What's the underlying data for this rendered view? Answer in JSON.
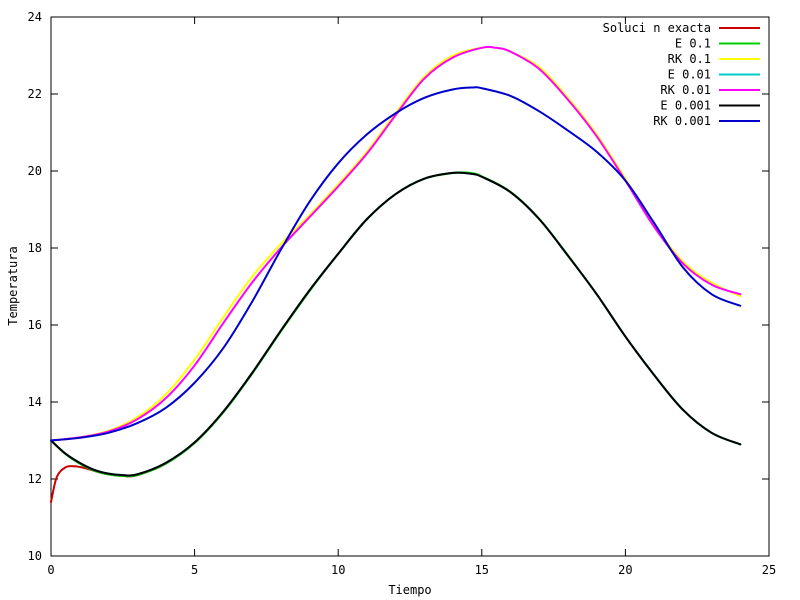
{
  "chart_data": {
    "type": "line",
    "title": "",
    "xlabel": "Tiempo",
    "ylabel": "Temperatura",
    "xlim": [
      0,
      25
    ],
    "ylim": [
      10,
      24
    ],
    "xticks": [
      0,
      5,
      10,
      15,
      20,
      25
    ],
    "yticks": [
      10,
      12,
      14,
      16,
      18,
      20,
      22,
      24
    ],
    "grid": false,
    "legend_position": "top-right",
    "series": [
      {
        "name": "Soluci n exacta",
        "color": "#cc0000",
        "x": [
          0,
          0.2,
          0.5,
          0.8,
          1.2,
          1.8,
          2.5,
          3,
          4,
          5,
          6,
          7,
          8,
          9,
          10,
          11,
          12,
          13,
          14,
          14.6,
          15,
          16,
          17,
          18,
          19,
          20,
          21,
          22,
          23,
          24
        ],
        "y": [
          11.4,
          12.05,
          12.3,
          12.33,
          12.28,
          12.15,
          12.08,
          12.1,
          12.4,
          12.95,
          13.75,
          14.75,
          15.85,
          16.9,
          17.85,
          18.75,
          19.4,
          19.8,
          19.95,
          19.93,
          19.85,
          19.45,
          18.75,
          17.8,
          16.8,
          15.7,
          14.7,
          13.8,
          13.2,
          12.9
        ]
      },
      {
        "name": "E 0.1",
        "color": "#00cc00",
        "x": [
          0,
          0.5,
          1,
          1.5,
          2,
          2.5,
          3,
          4,
          5,
          6,
          7,
          8,
          9,
          10,
          11,
          12,
          13,
          14,
          14.6,
          15,
          16,
          17,
          18,
          19,
          20,
          21,
          22,
          23,
          24
        ],
        "y": [
          13.0,
          12.65,
          12.4,
          12.22,
          12.12,
          12.08,
          12.1,
          12.4,
          12.93,
          13.73,
          14.73,
          15.83,
          16.88,
          17.85,
          18.75,
          19.4,
          19.8,
          19.95,
          19.95,
          19.86,
          19.46,
          18.76,
          17.81,
          16.8,
          15.7,
          14.7,
          13.8,
          13.2,
          12.9
        ]
      },
      {
        "name": "RK 0.1",
        "color": "#ffff00",
        "x": [
          0,
          1,
          2,
          3,
          4,
          5,
          6,
          7,
          8,
          9,
          10,
          11,
          12,
          13,
          14,
          15,
          15.5,
          16,
          17,
          18,
          19,
          20,
          21,
          22,
          23,
          24
        ],
        "y": [
          13.0,
          13.08,
          13.25,
          13.6,
          14.2,
          15.1,
          16.2,
          17.25,
          18.1,
          18.85,
          19.65,
          20.5,
          21.5,
          22.45,
          23.0,
          23.2,
          23.2,
          23.1,
          22.7,
          21.9,
          20.95,
          19.8,
          18.6,
          17.65,
          17.1,
          16.75
        ]
      },
      {
        "name": "E 0.01",
        "color": "#00cccc",
        "x": [
          0,
          0.5,
          1,
          1.5,
          2,
          2.5,
          3,
          4,
          5,
          6,
          7,
          8,
          9,
          10,
          11,
          12,
          13,
          14,
          14.6,
          15,
          16,
          17,
          18,
          19,
          20,
          21,
          22,
          23,
          24
        ],
        "y": [
          13.0,
          12.66,
          12.42,
          12.24,
          12.14,
          12.1,
          12.12,
          12.42,
          12.95,
          13.75,
          14.75,
          15.85,
          16.9,
          17.85,
          18.75,
          19.4,
          19.8,
          19.95,
          19.93,
          19.85,
          19.45,
          18.75,
          17.8,
          16.8,
          15.7,
          14.7,
          13.8,
          13.2,
          12.9
        ]
      },
      {
        "name": "RK 0.01",
        "color": "#ff00ff",
        "x": [
          0,
          1,
          2,
          3,
          4,
          5,
          6,
          7,
          8,
          9,
          10,
          11,
          12,
          13,
          14,
          15,
          15.5,
          16,
          17,
          18,
          19,
          20,
          21,
          22,
          23,
          24
        ],
        "y": [
          13.0,
          13.08,
          13.23,
          13.55,
          14.1,
          14.95,
          16.05,
          17.1,
          18.0,
          18.8,
          19.6,
          20.45,
          21.45,
          22.4,
          22.95,
          23.2,
          23.2,
          23.1,
          22.65,
          21.85,
          20.9,
          19.75,
          18.55,
          17.6,
          17.05,
          16.8
        ]
      },
      {
        "name": "E 0.001",
        "color": "#000000",
        "x": [
          0,
          0.5,
          1,
          1.5,
          2,
          2.5,
          3,
          4,
          5,
          6,
          7,
          8,
          9,
          10,
          11,
          12,
          13,
          14,
          14.6,
          15,
          16,
          17,
          18,
          19,
          20,
          21,
          22,
          23,
          24
        ],
        "y": [
          13.0,
          12.66,
          12.42,
          12.24,
          12.14,
          12.1,
          12.12,
          12.42,
          12.95,
          13.75,
          14.75,
          15.85,
          16.9,
          17.85,
          18.75,
          19.4,
          19.8,
          19.95,
          19.93,
          19.85,
          19.45,
          18.75,
          17.8,
          16.8,
          15.7,
          14.7,
          13.8,
          13.2,
          12.9
        ]
      },
      {
        "name": "RK 0.001",
        "color": "#0000cc",
        "x": [
          0,
          1,
          2,
          3,
          4,
          5,
          6,
          7,
          8,
          9,
          10,
          11,
          12,
          13,
          14,
          14.7,
          15,
          16,
          17,
          18,
          19,
          20,
          21,
          22,
          23,
          24
        ],
        "y": [
          13.0,
          13.07,
          13.2,
          13.45,
          13.85,
          14.5,
          15.4,
          16.6,
          17.95,
          19.2,
          20.2,
          20.95,
          21.5,
          21.9,
          22.12,
          22.17,
          22.15,
          21.95,
          21.55,
          21.05,
          20.5,
          19.75,
          18.65,
          17.5,
          16.8,
          16.5
        ]
      }
    ]
  }
}
